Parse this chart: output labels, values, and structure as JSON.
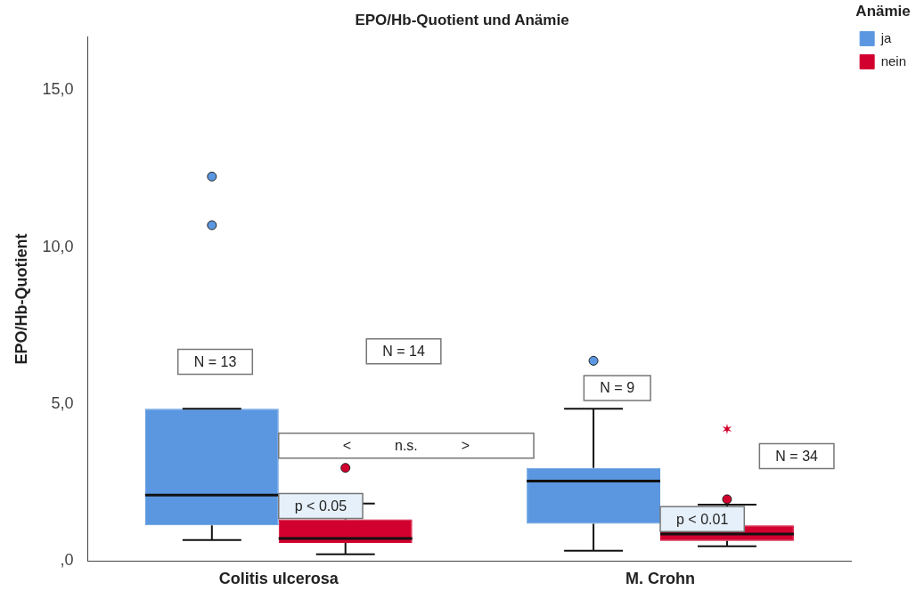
{
  "chart_data": {
    "type": "box",
    "title": "EPO/Hb-Quotient und Anämie",
    "ylabel": "EPO/Hb-Quotient",
    "legend_title": "Anämie",
    "legend": "top right",
    "grid": false,
    "categories": [
      "Colitis ulcerosa",
      "M. Crohn"
    ],
    "ylim": [
      0,
      16.7
    ],
    "yticks": [
      {
        "value": 0,
        "label": ",0"
      },
      {
        "value": 5,
        "label": "5,0"
      },
      {
        "value": 10,
        "label": "10,0"
      },
      {
        "value": 15,
        "label": "15,0"
      }
    ],
    "series": [
      {
        "name": "ja",
        "color": "#5b97e0",
        "boxes": [
          {
            "low": 0.67,
            "q1": 1.14,
            "median": 2.1,
            "q3": 4.85,
            "high": 4.85,
            "outliers": [
              12.25,
              10.7
            ]
          },
          {
            "low": 0.33,
            "q1": 1.19,
            "median": 2.55,
            "q3": 2.97,
            "high": 4.85,
            "outliers": [
              6.38
            ]
          }
        ]
      },
      {
        "name": "nein",
        "color": "#d2002e",
        "boxes": [
          {
            "low": 0.22,
            "q1": 0.58,
            "median": 0.72,
            "q3": 1.33,
            "high": 1.83,
            "outliers": [
              2.97
            ]
          },
          {
            "low": 0.47,
            "q1": 0.64,
            "median": 0.86,
            "q3": 1.14,
            "high": 1.8,
            "outliers": [
              1.97,
              4.21
            ]
          }
        ]
      }
    ],
    "annotations": [
      "N = 13",
      "N = 14",
      "N = 9",
      "N = 34",
      "<           n.s.           >",
      "p < 0.05",
      "p < 0.01"
    ]
  }
}
